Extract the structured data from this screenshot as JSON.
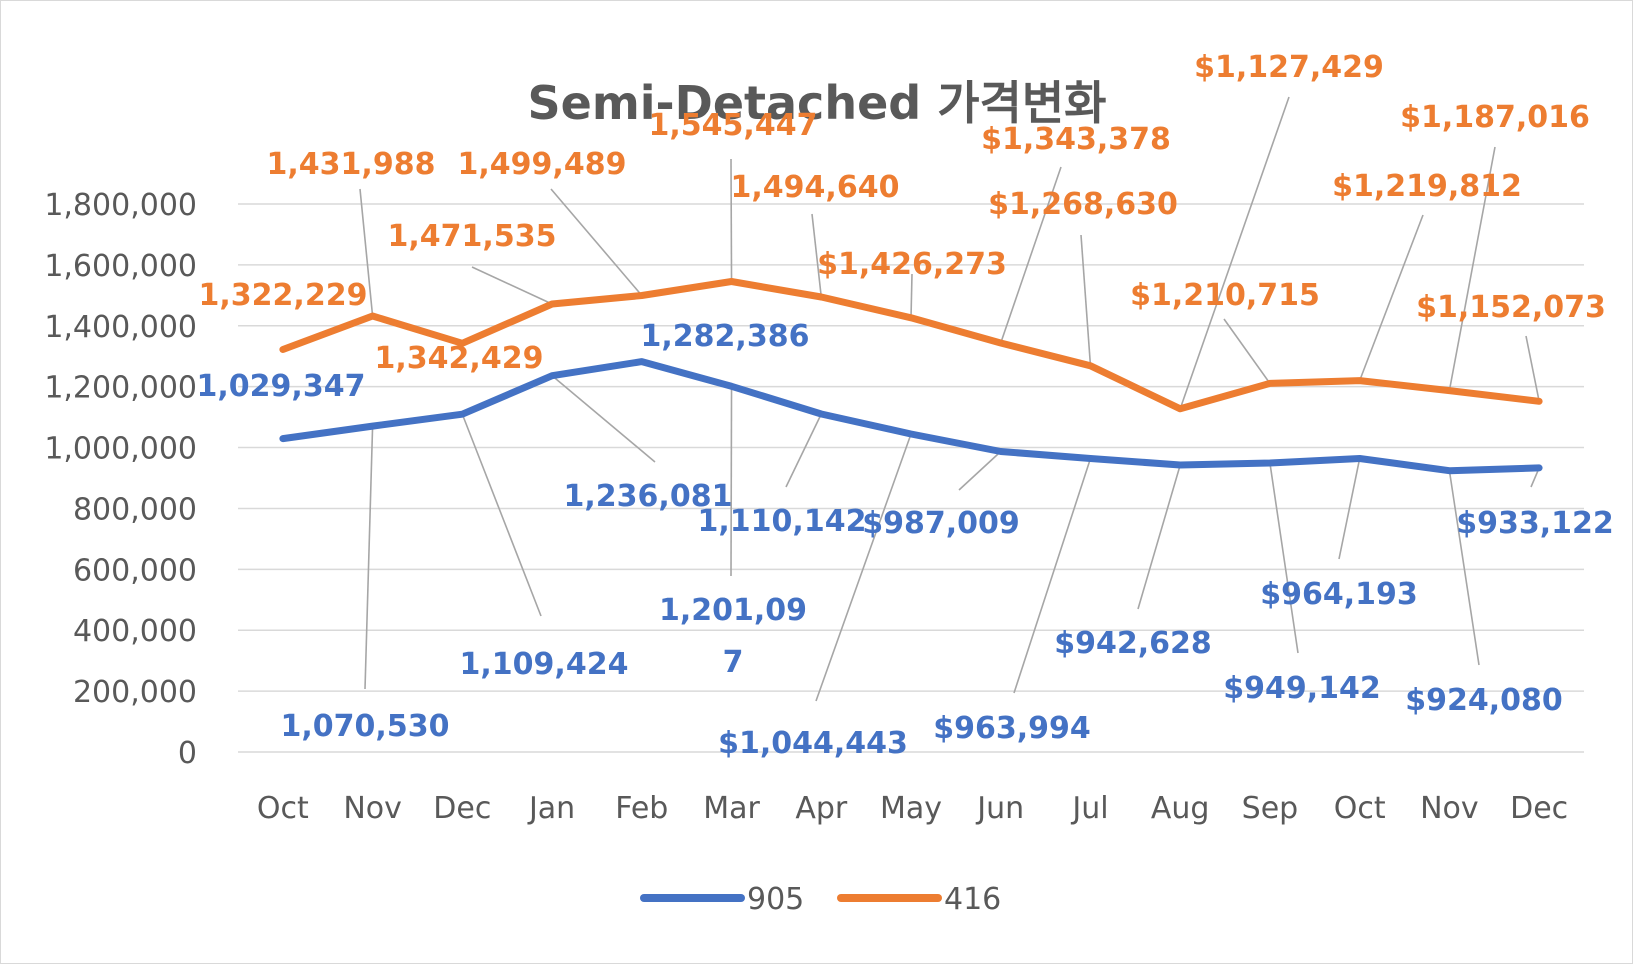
{
  "chart_data": {
    "type": "line",
    "title": "Semi-Detached 가격변화",
    "xlabel": "",
    "ylabel": "",
    "ylim": [
      0,
      1800000
    ],
    "yticks": [
      "0",
      "200,000",
      "400,000",
      "600,000",
      "800,000",
      "1,000,000",
      "1,200,000",
      "1,400,000",
      "1,600,000",
      "1,800,000"
    ],
    "ytick_values": [
      0,
      200000,
      400000,
      600000,
      800000,
      1000000,
      1200000,
      1400000,
      1600000,
      1800000
    ],
    "grid": true,
    "legend_position": "bottom",
    "categories": [
      "Oct",
      "Nov",
      "Dec",
      "Jan",
      "Feb",
      "Mar",
      "Apr",
      "May",
      "Jun",
      "Jul",
      "Aug",
      "Sep",
      "Oct",
      "Nov",
      "Dec"
    ],
    "series": [
      {
        "name": "905",
        "color": "#4472c4",
        "values": [
          1029347,
          1070530,
          1109424,
          1236081,
          1282386,
          1201097,
          1110142,
          1044443,
          987009,
          963994,
          942628,
          949142,
          964193,
          924080,
          933122
        ],
        "labels": [
          "1,029,347",
          "1,070,530",
          "1,109,424",
          "1,236,081",
          "1,282,386",
          "1,201,09\n7",
          "1,110,142",
          "$1,044,443",
          "$987,009",
          "$963,994",
          "$942,628",
          "$949,142",
          "$964,193",
          "$924,080",
          "$933,122"
        ]
      },
      {
        "name": "416",
        "color": "#ed7d31",
        "values": [
          1322229,
          1431988,
          1342429,
          1471535,
          1499489,
          1545447,
          1494640,
          1426273,
          1343378,
          1268630,
          1127429,
          1210715,
          1219812,
          1187016,
          1152073
        ],
        "labels": [
          "1,322,229",
          "1,431,988",
          "1,342,429",
          "1,471,535",
          "1,499,489",
          "1,545,447",
          "1,494,640",
          "$1,426,273",
          "$1,343,378",
          "$1,268,630",
          "$1,127,429",
          "$1,210,715",
          "$1,219,812",
          "$1,187,016",
          "$1,152,073"
        ]
      }
    ]
  }
}
